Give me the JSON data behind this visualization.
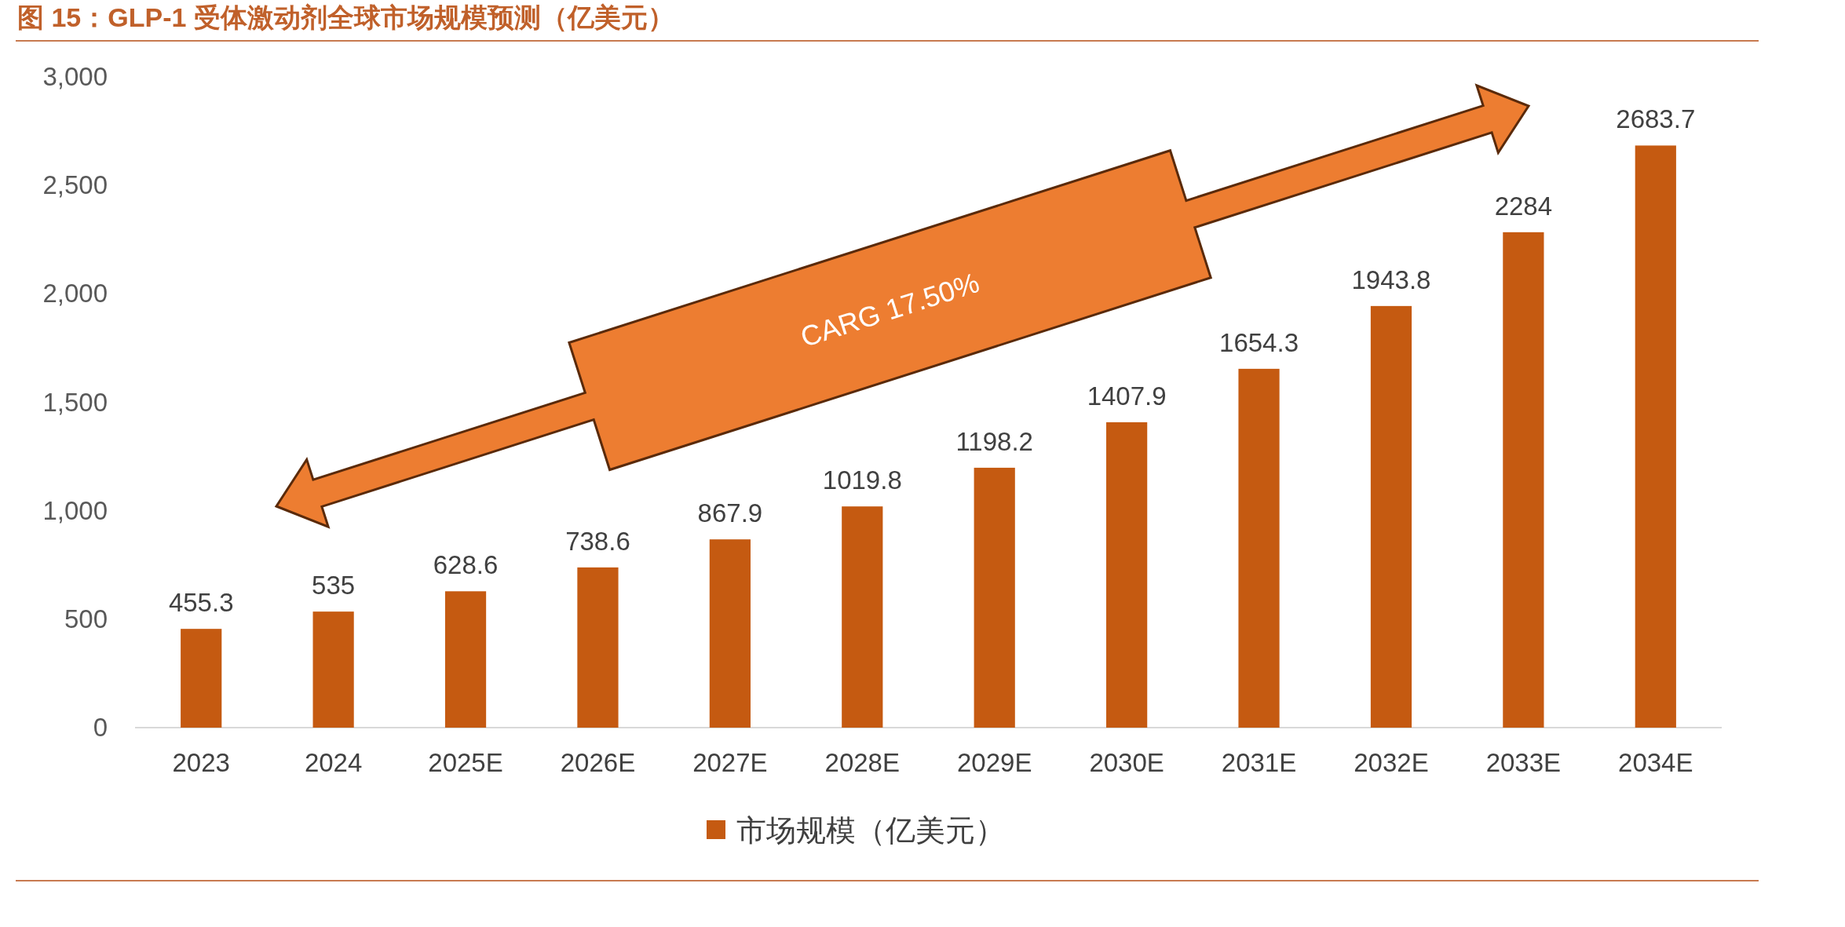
{
  "chart_data": {
    "type": "bar",
    "title": "图 15：GLP-1 受体激动剂全球市场规模预测（亿美元）",
    "categories": [
      "2023",
      "2024",
      "2025E",
      "2026E",
      "2027E",
      "2028E",
      "2029E",
      "2030E",
      "2031E",
      "2032E",
      "2033E",
      "2034E"
    ],
    "series": [
      {
        "name": "市场规模（亿美元）",
        "color": "#c55a11",
        "values": [
          455.3,
          535,
          628.6,
          738.6,
          867.9,
          1019.8,
          1198.2,
          1407.9,
          1654.3,
          1943.8,
          2284,
          2683.7
        ]
      }
    ],
    "ylim": [
      0,
      3000
    ],
    "yticks": [
      0,
      500,
      {
        "value": 1000,
        "label": "1,000"
      },
      {
        "value": 1500,
        "label": "1,500"
      },
      {
        "value": 2000,
        "label": "2,000"
      },
      {
        "value": 2500,
        "label": "2,500"
      },
      {
        "value": 3000,
        "label": "3,000"
      }
    ],
    "data_labels": true,
    "legend": "bottom",
    "grid": false,
    "annotations": [
      "CARG 17.50%"
    ]
  }
}
